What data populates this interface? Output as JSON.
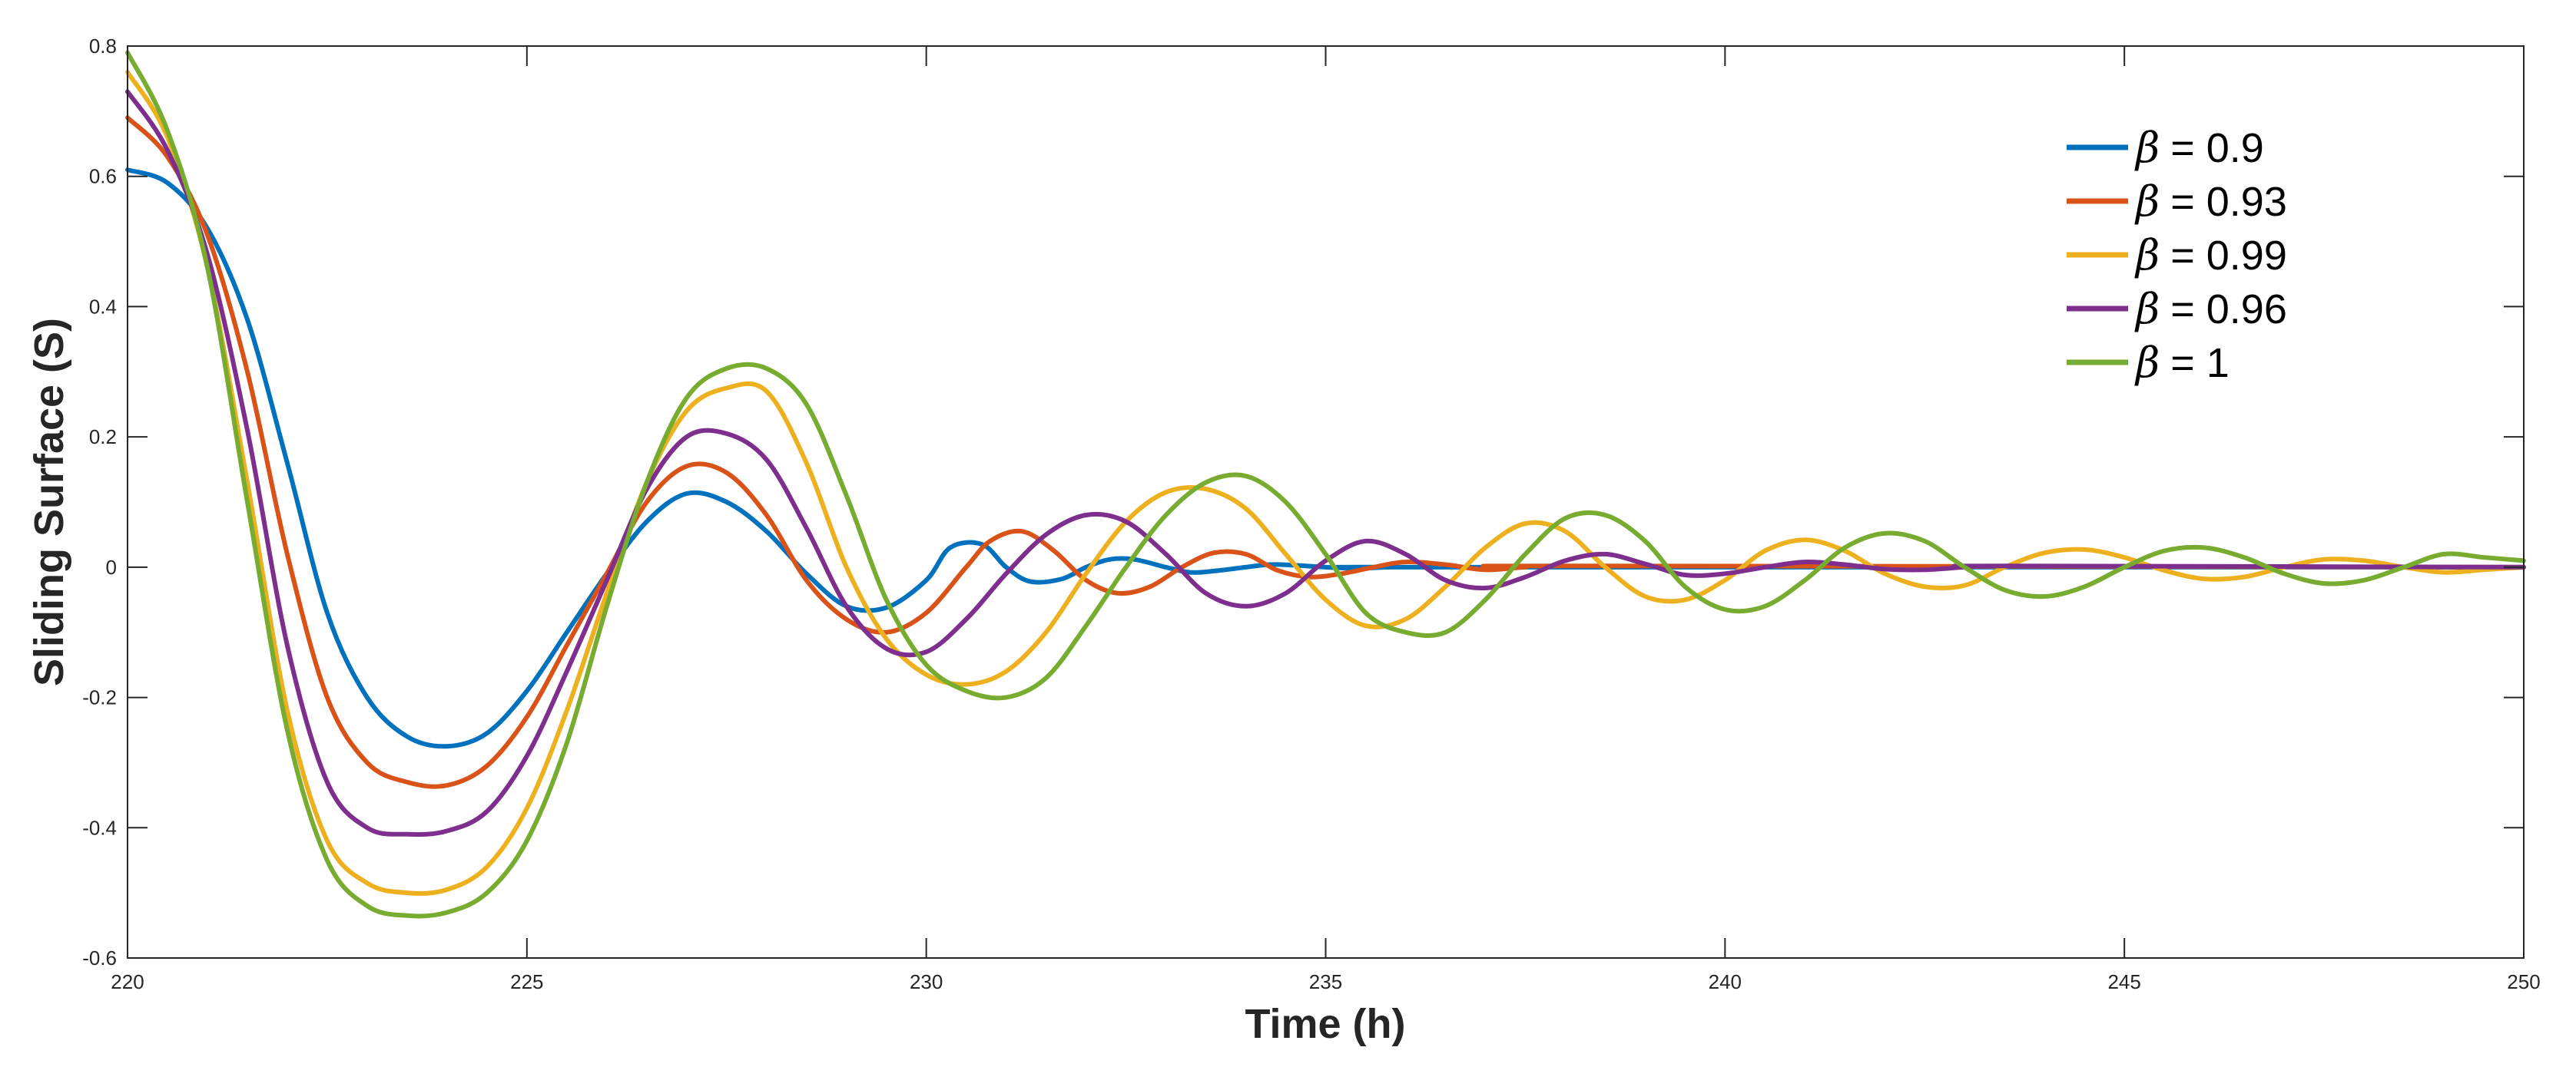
{
  "chart_data": {
    "type": "line",
    "title": "",
    "xlabel": "Time (h)",
    "ylabel": "Sliding Surface (S)",
    "xlim": [
      220,
      250
    ],
    "ylim": [
      -0.6,
      0.8
    ],
    "xticks": [
      220,
      225,
      230,
      235,
      240,
      245,
      250
    ],
    "yticks": [
      -0.6,
      -0.4,
      -0.2,
      0,
      0.2,
      0.4,
      0.6,
      0.8
    ],
    "ytick_labels": [
      "-0.6",
      "-0.4",
      "-0.2",
      "0",
      "0.2",
      "0.4",
      "0.6",
      "0.8"
    ],
    "grid": false,
    "legend_position": "top-right",
    "series": [
      {
        "name": "β = 0.9",
        "symbol": "β",
        "value_label": "= 0.9",
        "color": "#0072BD",
        "x": [
          220,
          220.5,
          221,
          221.5,
          222,
          222.5,
          223,
          223.5,
          224,
          224.5,
          225,
          225.5,
          226,
          226.5,
          227,
          227.5,
          228,
          228.5,
          229,
          229.5,
          230,
          230.3,
          230.7,
          231,
          231.3,
          231.7,
          232,
          232.3,
          232.6,
          233,
          233.3,
          233.6,
          234,
          234.3,
          234.6,
          235,
          235.4,
          235.8,
          236.3,
          250
        ],
        "values": [
          0.61,
          0.59,
          0.52,
          0.38,
          0.16,
          -0.07,
          -0.2,
          -0.26,
          -0.275,
          -0.255,
          -0.19,
          -0.1,
          -0.01,
          0.07,
          0.113,
          0.1,
          0.055,
          -0.01,
          -0.06,
          -0.062,
          -0.02,
          0.03,
          0.035,
          0.0,
          -0.022,
          -0.018,
          0.0,
          0.012,
          0.012,
          0.0,
          -0.008,
          -0.006,
          0.0,
          0.004,
          0.003,
          0.0,
          -0.002,
          0.0,
          0.0,
          0.0
        ]
      },
      {
        "name": "β = 0.93",
        "symbol": "β",
        "value_label": "= 0.93",
        "color": "#D95319",
        "x": [
          220,
          220.5,
          221,
          221.5,
          222,
          222.5,
          223,
          223.5,
          224,
          224.5,
          225,
          225.5,
          226,
          226.5,
          227,
          227.5,
          228,
          228.5,
          229,
          229.5,
          230,
          230.5,
          230.8,
          231.2,
          231.6,
          232,
          232.4,
          232.8,
          233.2,
          233.6,
          234,
          234.4,
          234.8,
          235.2,
          235.6,
          236,
          236.5,
          237,
          237.5,
          238,
          250
        ],
        "values": [
          0.69,
          0.63,
          0.51,
          0.3,
          0.02,
          -0.2,
          -0.3,
          -0.33,
          -0.335,
          -0.305,
          -0.23,
          -0.12,
          -0.01,
          0.1,
          0.155,
          0.145,
          0.08,
          -0.02,
          -0.08,
          -0.1,
          -0.07,
          0.0,
          0.04,
          0.055,
          0.025,
          -0.02,
          -0.04,
          -0.03,
          0.0,
          0.022,
          0.02,
          -0.005,
          -0.015,
          -0.01,
          0.0,
          0.008,
          0.004,
          -0.004,
          0.0,
          0.002,
          0.0
        ]
      },
      {
        "name": "β = 0.99",
        "symbol": "β",
        "value_label": "= 0.99",
        "color": "#EDB120",
        "x": [
          220,
          220.5,
          221,
          221.5,
          222,
          222.5,
          223,
          223.5,
          224,
          224.5,
          225,
          225.5,
          226,
          226.5,
          227,
          227.5,
          228,
          228.5,
          229,
          229.5,
          230,
          230.5,
          231,
          231.5,
          232,
          232.5,
          233,
          233.5,
          234,
          234.5,
          235,
          235.5,
          236,
          236.5,
          237,
          237.5,
          238,
          238.5,
          239,
          239.5,
          240,
          240.5,
          241,
          241.5,
          242,
          242.5,
          243,
          243.5,
          244,
          244.5,
          245,
          245.5,
          246,
          246.5,
          247,
          247.5,
          248,
          248.5,
          249,
          249.5,
          250
        ],
        "values": [
          0.76,
          0.66,
          0.46,
          0.13,
          -0.22,
          -0.42,
          -0.485,
          -0.5,
          -0.495,
          -0.46,
          -0.37,
          -0.22,
          -0.04,
          0.13,
          0.24,
          0.275,
          0.27,
          0.16,
          0.0,
          -0.11,
          -0.165,
          -0.18,
          -0.16,
          -0.1,
          -0.01,
          0.07,
          0.115,
          0.12,
          0.09,
          0.02,
          -0.05,
          -0.09,
          -0.08,
          -0.03,
          0.03,
          0.067,
          0.055,
          0.0,
          -0.045,
          -0.05,
          -0.02,
          0.025,
          0.042,
          0.025,
          -0.01,
          -0.03,
          -0.028,
          0.0,
          0.022,
          0.027,
          0.015,
          -0.005,
          -0.018,
          -0.015,
          0.0,
          0.012,
          0.01,
          0.0,
          -0.008,
          -0.004,
          0.0
        ]
      },
      {
        "name": "β = 0.96",
        "symbol": "β",
        "value_label": "= 0.96",
        "color": "#7E2F8E",
        "x": [
          220,
          220.5,
          221,
          221.5,
          222,
          222.5,
          223,
          223.5,
          224,
          224.5,
          225,
          225.5,
          226,
          226.5,
          227,
          227.5,
          228,
          228.5,
          229,
          229.5,
          230,
          230.5,
          231,
          231.5,
          232,
          232.5,
          233,
          233.5,
          234,
          234.5,
          235,
          235.5,
          236,
          236.5,
          237,
          237.5,
          238,
          238.5,
          239,
          239.5,
          240,
          240.5,
          241,
          241.5,
          242,
          242.5,
          243,
          243.5,
          250
        ],
        "values": [
          0.73,
          0.64,
          0.48,
          0.21,
          -0.12,
          -0.33,
          -0.4,
          -0.41,
          -0.405,
          -0.375,
          -0.29,
          -0.16,
          -0.02,
          0.12,
          0.2,
          0.205,
          0.165,
          0.06,
          -0.06,
          -0.125,
          -0.13,
          -0.08,
          -0.01,
          0.05,
          0.08,
          0.07,
          0.02,
          -0.04,
          -0.06,
          -0.04,
          0.01,
          0.04,
          0.02,
          -0.02,
          -0.032,
          -0.015,
          0.01,
          0.02,
          0.005,
          -0.012,
          -0.01,
          0.0,
          0.008,
          0.004,
          -0.003,
          -0.004,
          0.0,
          0.002,
          0.0
        ]
      },
      {
        "name": "β = 1",
        "symbol": "β",
        "value_label": "= 1",
        "color": "#77AC30",
        "x": [
          220,
          220.5,
          221,
          221.5,
          222,
          222.5,
          223,
          223.5,
          224,
          224.5,
          225,
          225.5,
          226,
          226.5,
          227,
          227.5,
          228,
          228.5,
          229,
          229.5,
          230,
          230.5,
          231,
          231.5,
          232,
          232.5,
          233,
          233.5,
          234,
          234.5,
          235,
          235.5,
          236,
          236.5,
          237,
          237.5,
          238,
          238.5,
          239,
          239.5,
          240,
          240.5,
          241,
          241.5,
          242,
          242.5,
          243,
          243.5,
          244,
          244.5,
          245,
          245.5,
          246,
          246.5,
          247,
          247.5,
          248,
          248.5,
          249,
          249.5,
          250
        ],
        "values": [
          0.79,
          0.67,
          0.46,
          0.1,
          -0.25,
          -0.45,
          -0.52,
          -0.535,
          -0.53,
          -0.5,
          -0.42,
          -0.27,
          -0.06,
          0.13,
          0.26,
          0.305,
          0.305,
          0.25,
          0.11,
          -0.05,
          -0.15,
          -0.19,
          -0.2,
          -0.17,
          -0.09,
          0.0,
          0.08,
          0.13,
          0.14,
          0.1,
          0.02,
          -0.07,
          -0.1,
          -0.1,
          -0.05,
          0.02,
          0.075,
          0.08,
          0.04,
          -0.03,
          -0.065,
          -0.06,
          -0.02,
          0.03,
          0.052,
          0.04,
          0.0,
          -0.035,
          -0.045,
          -0.03,
          0.0,
          0.025,
          0.03,
          0.015,
          -0.01,
          -0.025,
          -0.02,
          0.0,
          0.02,
          0.015,
          0.01
        ]
      }
    ]
  }
}
